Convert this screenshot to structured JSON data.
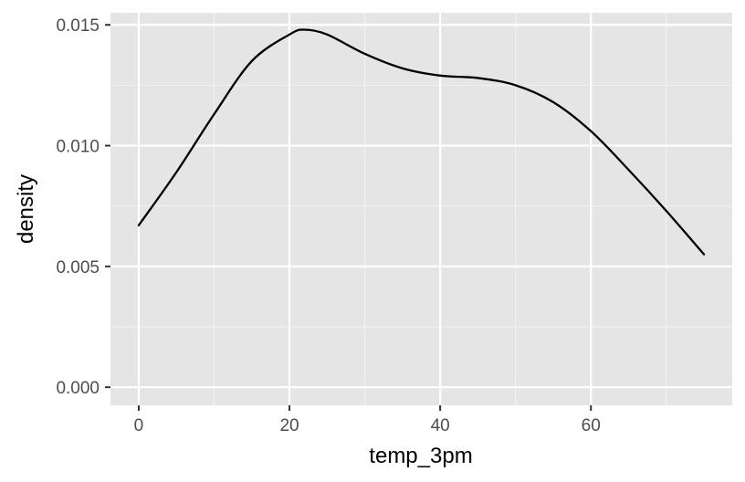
{
  "chart_data": {
    "type": "line",
    "title": "",
    "xlabel": "temp_3pm",
    "ylabel": "density",
    "xlim": [
      -3.75,
      78.75
    ],
    "ylim": [
      -0.00075,
      0.0155
    ],
    "x_ticks": [
      0,
      20,
      40,
      60
    ],
    "x_tick_labels": [
      "0",
      "20",
      "40",
      "60"
    ],
    "y_ticks": [
      0.0,
      0.005,
      0.01,
      0.015
    ],
    "y_tick_labels": [
      "0.000",
      "0.005",
      "0.010",
      "0.015"
    ],
    "grid": true,
    "legend": "none",
    "colors": {
      "panel": "#e5e5e5",
      "grid": "#ffffff",
      "line": "#000000",
      "tick_text": "#4d4d4d"
    },
    "series": [
      {
        "x": [
          0,
          5,
          10,
          15,
          20,
          22,
          25,
          30,
          35,
          40,
          45,
          50,
          55,
          60,
          65,
          70,
          75
        ],
        "y": [
          0.0067,
          0.0089,
          0.0113,
          0.0135,
          0.0146,
          0.0148,
          0.0146,
          0.0138,
          0.0132,
          0.0129,
          0.0128,
          0.0125,
          0.0118,
          0.0106,
          0.009,
          0.0073,
          0.0055
        ]
      }
    ]
  }
}
